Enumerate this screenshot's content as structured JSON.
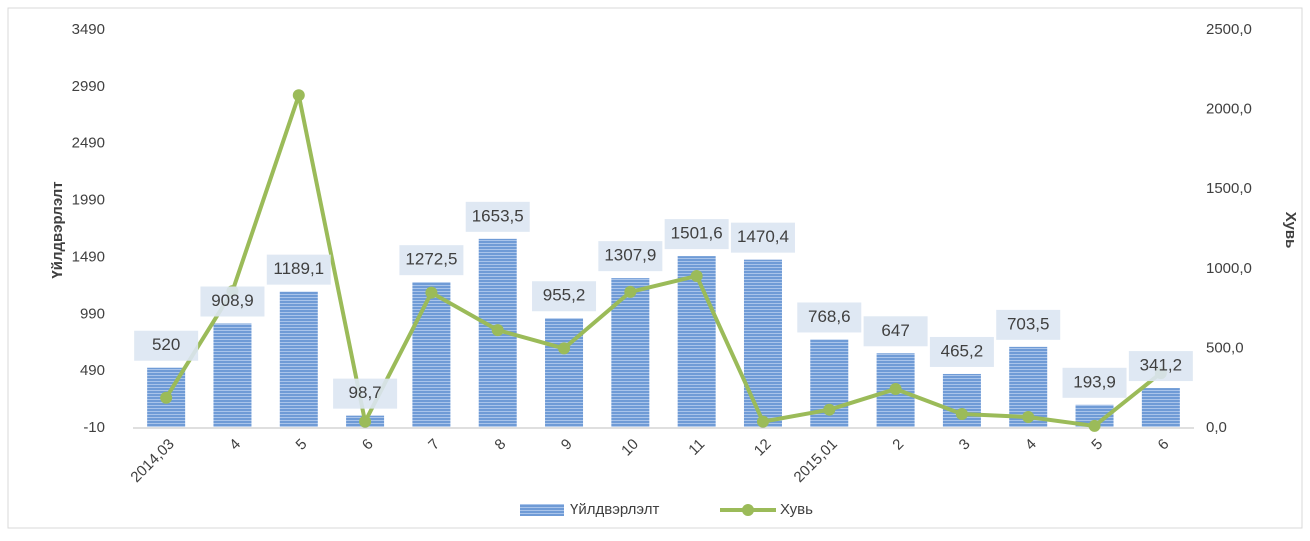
{
  "chart_data": {
    "type": "bar_line",
    "y_label": "Үйлдвэрлэлт",
    "y2_label": "Хувь",
    "categories": [
      "2014,03",
      "4",
      "5",
      "6",
      "7",
      "8",
      "9",
      "10",
      "11",
      "12",
      "2015,01",
      "2",
      "3",
      "4",
      "5",
      "6"
    ],
    "series": [
      {
        "name": "Үйлдвэрлэлт",
        "type": "bar",
        "color": "#6f9bd6",
        "values": [
          520,
          908.9,
          1189.1,
          98.7,
          1272.5,
          1653.5,
          955.2,
          1307.9,
          1501.6,
          1470.4,
          768.6,
          647,
          465.2,
          703.5,
          193.9,
          341.2
        ],
        "value_labels": [
          "520",
          "908,9",
          "1189,1",
          "98,7",
          "1272,5",
          "1653,5",
          "955,2",
          "1307,9",
          "1501,6",
          "1470,4",
          "768,6",
          "647",
          "465,2",
          "703,5",
          "193,9",
          "341,2"
        ]
      },
      {
        "name": "Хувь",
        "type": "line",
        "color": "#9bbb59",
        "axis": "y2",
        "values": [
          190,
          860,
          2090,
          40,
          850,
          615,
          500,
          855,
          955,
          40,
          115,
          245,
          88,
          69,
          13,
          345
        ]
      }
    ],
    "ylim": [
      -10,
      3490
    ],
    "yticks": [
      -10,
      490,
      990,
      1490,
      1990,
      2490,
      2990,
      3490
    ],
    "y2lim": [
      0,
      2500
    ],
    "y2ticks": [
      {
        "value": 0,
        "label": "0,0"
      },
      {
        "value": 500,
        "label": "500,0"
      },
      {
        "value": 1000,
        "label": "1000,0"
      },
      {
        "value": 1500,
        "label": "1500,0"
      },
      {
        "value": 2000,
        "label": "2000,0"
      },
      {
        "value": 2500,
        "label": "2500,0"
      }
    ],
    "legend": "bottom"
  }
}
